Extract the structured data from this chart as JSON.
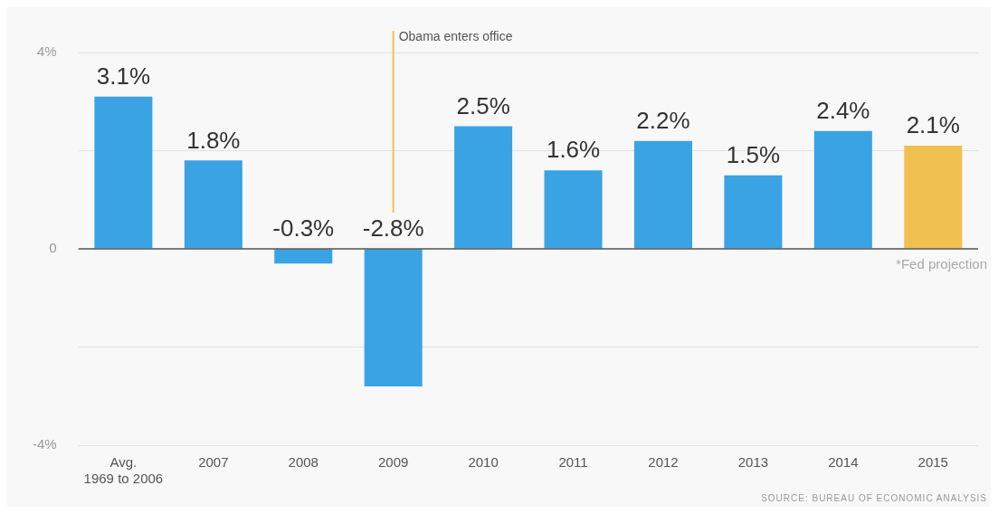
{
  "chart_data": {
    "type": "bar",
    "categories": [
      "Avg. 1969 to 2006",
      "2007",
      "2008",
      "2009",
      "2010",
      "2011",
      "2012",
      "2013",
      "2014",
      "2015"
    ],
    "values": [
      3.1,
      1.8,
      -0.3,
      -2.8,
      2.5,
      1.6,
      2.2,
      1.5,
      2.4,
      2.1
    ],
    "colors": [
      "#3aa3e3",
      "#3aa3e3",
      "#3aa3e3",
      "#3aa3e3",
      "#3aa3e3",
      "#3aa3e3",
      "#3aa3e3",
      "#3aa3e3",
      "#3aa3e3",
      "#f0c050"
    ],
    "value_labels": [
      "3.1%",
      "1.8%",
      "-0.3%",
      "-2.8%",
      "2.5%",
      "1.6%",
      "2.2%",
      "1.5%",
      "2.4%",
      "2.1%"
    ],
    "ylim": [
      -4,
      4
    ],
    "yticks": [
      {
        "value": 4,
        "label": "4%"
      },
      {
        "value": 2,
        "label": null
      },
      0,
      {
        "value": -2,
        "label": null
      },
      {
        "value": -4,
        "label": "-4%"
      }
    ],
    "grid": "y",
    "ref_lines": [
      {
        "axis": "x",
        "value": "2009",
        "label": "Obama enters office",
        "color": "#f0c050"
      }
    ],
    "annotations": [
      "*Fed projection",
      "SOURCE: BUREAU OF ECONOMIC ANALYSIS"
    ]
  }
}
